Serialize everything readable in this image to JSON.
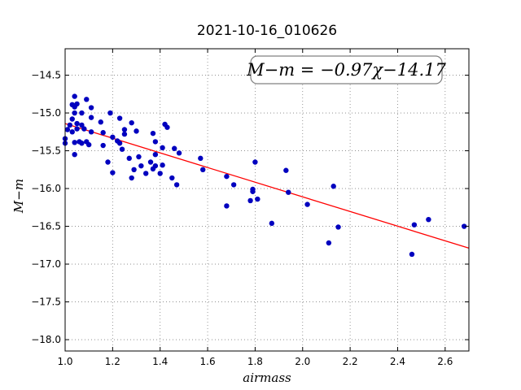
{
  "chart_data": {
    "type": "scatter",
    "title": "2021-10-16_010626",
    "xlabel": "airmass",
    "ylabel": "M−m",
    "xlim": [
      1.0,
      2.7
    ],
    "ylim": [
      -18.15,
      -14.15
    ],
    "y_inverted": true,
    "grid": true,
    "xticks": [
      1.0,
      1.2,
      1.4,
      1.6,
      1.8,
      2.0,
      2.2,
      2.4,
      2.6
    ],
    "xtick_labels": [
      "1.0",
      "1.2",
      "1.4",
      "1.6",
      "1.8",
      "2.0",
      "2.2",
      "2.4",
      "2.6"
    ],
    "yticks": [
      -14.5,
      -15.0,
      -15.5,
      -16.0,
      -16.5,
      -17.0,
      -17.5,
      -18.0
    ],
    "ytick_labels": [
      "−14.5",
      "−15.0",
      "−15.5",
      "−16.0",
      "−16.5",
      "−17.0",
      "−17.5",
      "−18.0"
    ],
    "annotation": "M−m = −0.97χ−14.17",
    "colors": {
      "points": "#0000bf",
      "fit": "#ff0000"
    },
    "fit": {
      "slope": -0.97,
      "intercept": -14.17
    },
    "points": [
      [
        1.0,
        -15.34
      ],
      [
        1.0,
        -15.4
      ],
      [
        1.01,
        -15.22
      ],
      [
        1.02,
        -15.16
      ],
      [
        1.03,
        -14.89
      ],
      [
        1.03,
        -15.08
      ],
      [
        1.03,
        -15.25
      ],
      [
        1.04,
        -14.78
      ],
      [
        1.04,
        -14.92
      ],
      [
        1.04,
        -15.0
      ],
      [
        1.04,
        -15.39
      ],
      [
        1.04,
        -15.55
      ],
      [
        1.05,
        -14.88
      ],
      [
        1.05,
        -15.14
      ],
      [
        1.05,
        -15.21
      ],
      [
        1.06,
        -15.38
      ],
      [
        1.07,
        -15.0
      ],
      [
        1.07,
        -15.16
      ],
      [
        1.07,
        -15.4
      ],
      [
        1.08,
        -15.21
      ],
      [
        1.09,
        -14.82
      ],
      [
        1.09,
        -15.38
      ],
      [
        1.1,
        -15.42
      ],
      [
        1.11,
        -14.93
      ],
      [
        1.11,
        -15.06
      ],
      [
        1.11,
        -15.25
      ],
      [
        1.15,
        -15.12
      ],
      [
        1.16,
        -15.26
      ],
      [
        1.16,
        -15.43
      ],
      [
        1.18,
        -15.65
      ],
      [
        1.19,
        -15.0
      ],
      [
        1.2,
        -15.32
      ],
      [
        1.2,
        -15.79
      ],
      [
        1.22,
        -15.37
      ],
      [
        1.23,
        -15.07
      ],
      [
        1.23,
        -15.4
      ],
      [
        1.24,
        -15.48
      ],
      [
        1.25,
        -15.28
      ],
      [
        1.25,
        -15.22
      ],
      [
        1.27,
        -15.6
      ],
      [
        1.28,
        -15.13
      ],
      [
        1.28,
        -15.86
      ],
      [
        1.29,
        -15.75
      ],
      [
        1.3,
        -15.24
      ],
      [
        1.31,
        -15.58
      ],
      [
        1.32,
        -15.7
      ],
      [
        1.34,
        -15.8
      ],
      [
        1.36,
        -15.65
      ],
      [
        1.37,
        -15.27
      ],
      [
        1.37,
        -15.74
      ],
      [
        1.38,
        -15.55
      ],
      [
        1.38,
        -15.7
      ],
      [
        1.38,
        -15.38
      ],
      [
        1.4,
        -15.8
      ],
      [
        1.41,
        -15.46
      ],
      [
        1.41,
        -15.69
      ],
      [
        1.42,
        -15.15
      ],
      [
        1.43,
        -15.19
      ],
      [
        1.45,
        -15.86
      ],
      [
        1.46,
        -15.47
      ],
      [
        1.47,
        -15.95
      ],
      [
        1.48,
        -15.53
      ],
      [
        1.57,
        -15.6
      ],
      [
        1.58,
        -15.75
      ],
      [
        1.68,
        -15.84
      ],
      [
        1.68,
        -16.23
      ],
      [
        1.71,
        -15.95
      ],
      [
        1.78,
        -16.16
      ],
      [
        1.79,
        -16.01
      ],
      [
        1.79,
        -16.04
      ],
      [
        1.8,
        -15.65
      ],
      [
        1.81,
        -16.14
      ],
      [
        1.87,
        -16.46
      ],
      [
        1.93,
        -15.76
      ],
      [
        1.94,
        -16.05
      ],
      [
        2.02,
        -16.21
      ],
      [
        2.11,
        -16.72
      ],
      [
        2.13,
        -15.97
      ],
      [
        2.15,
        -16.51
      ],
      [
        2.46,
        -16.87
      ],
      [
        2.47,
        -16.48
      ],
      [
        2.53,
        -16.41
      ],
      [
        2.68,
        -16.5
      ]
    ]
  }
}
